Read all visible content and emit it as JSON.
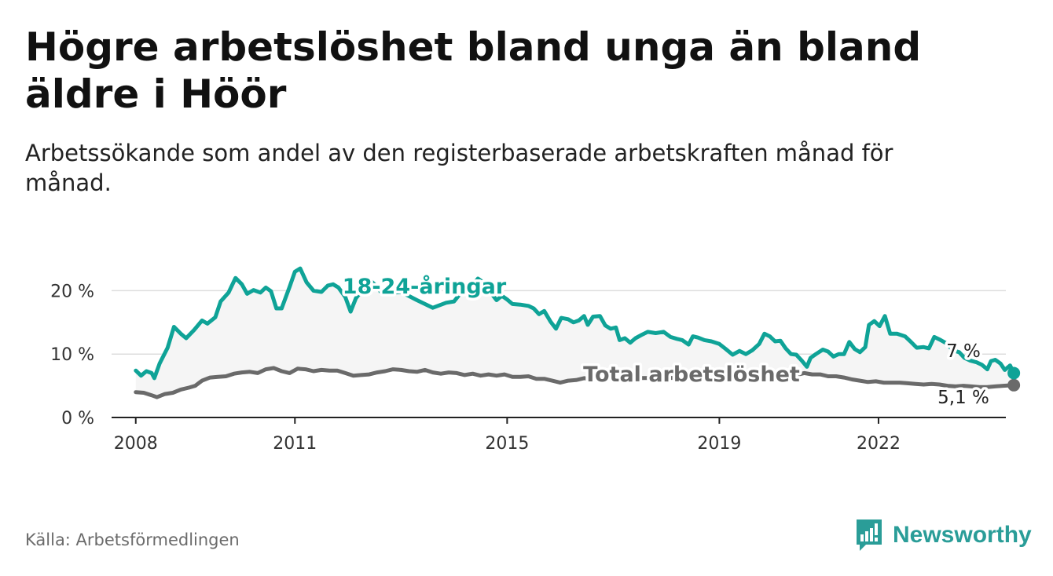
{
  "header": {
    "title": "Högre arbetslöshet bland unga än bland äldre i Höör",
    "subtitle": "Arbetssökande som andel av den registerbaserade arbetskraften månad för månad."
  },
  "footer": {
    "source": "Källa: Arbetsförmedlingen",
    "brand": "Newsworthy"
  },
  "colors": {
    "youth": "#0fa397",
    "total": "#6a6a6a",
    "grid": "#dddddd",
    "band": "#f5f5f5",
    "brand": "#2a9d98"
  },
  "chart_data": {
    "type": "line",
    "title": "Högre arbetslöshet bland unga än bland äldre i Höör",
    "xlabel": "",
    "ylabel": "",
    "xlim": [
      2007.9,
      2024.4
    ],
    "ylim": [
      0,
      25
    ],
    "grid": true,
    "y_ticks": [
      0,
      10,
      20
    ],
    "y_tick_labels": [
      "0 %",
      "10 %",
      "20 %"
    ],
    "x_ticks": [
      2008,
      2011,
      2015,
      2019,
      2022
    ],
    "x_tick_labels": [
      "2008",
      "2011",
      "2015",
      "2019",
      "2022"
    ],
    "series": [
      {
        "name": "18-24-åringar",
        "label": "18-24-åringar",
        "end_label": "7 %",
        "points": [
          [
            2008.0,
            7.4
          ],
          [
            2008.1,
            6.6
          ],
          [
            2008.2,
            7.3
          ],
          [
            2008.3,
            7.0
          ],
          [
            2008.35,
            6.2
          ],
          [
            2008.45,
            8.5
          ],
          [
            2008.6,
            11.0
          ],
          [
            2008.72,
            14.3
          ],
          [
            2008.85,
            13.2
          ],
          [
            2008.95,
            12.5
          ],
          [
            2009.1,
            13.8
          ],
          [
            2009.25,
            15.3
          ],
          [
            2009.35,
            14.8
          ],
          [
            2009.5,
            15.8
          ],
          [
            2009.6,
            18.3
          ],
          [
            2009.75,
            19.7
          ],
          [
            2009.88,
            22.0
          ],
          [
            2010.0,
            21.0
          ],
          [
            2010.1,
            19.5
          ],
          [
            2010.22,
            20.1
          ],
          [
            2010.35,
            19.7
          ],
          [
            2010.45,
            20.5
          ],
          [
            2010.55,
            19.9
          ],
          [
            2010.65,
            17.2
          ],
          [
            2010.75,
            17.2
          ],
          [
            2010.9,
            20.6
          ],
          [
            2011.0,
            23.0
          ],
          [
            2011.1,
            23.5
          ],
          [
            2011.22,
            21.3
          ],
          [
            2011.35,
            20.0
          ],
          [
            2011.5,
            19.8
          ],
          [
            2011.62,
            20.8
          ],
          [
            2011.72,
            21.0
          ],
          [
            2011.82,
            20.5
          ],
          [
            2011.95,
            19.0
          ],
          [
            2012.05,
            16.7
          ],
          [
            2012.15,
            18.8
          ],
          [
            2012.3,
            20.4
          ],
          [
            2012.42,
            21.6
          ],
          [
            2012.5,
            21.0
          ],
          [
            2012.65,
            19.5
          ],
          [
            2013.0,
            19.8
          ],
          [
            2013.3,
            18.5
          ],
          [
            2013.6,
            17.3
          ],
          [
            2013.85,
            18.1
          ],
          [
            2014.0,
            18.3
          ],
          [
            2014.15,
            19.9
          ],
          [
            2014.3,
            20.3
          ],
          [
            2014.45,
            21.9
          ],
          [
            2014.55,
            21.3
          ],
          [
            2014.7,
            19.6
          ],
          [
            2014.8,
            18.5
          ],
          [
            2014.9,
            19.2
          ],
          [
            2015.0,
            18.6
          ],
          [
            2015.1,
            17.9
          ],
          [
            2015.25,
            17.8
          ],
          [
            2015.4,
            17.6
          ],
          [
            2015.5,
            17.2
          ],
          [
            2015.6,
            16.3
          ],
          [
            2015.7,
            16.8
          ],
          [
            2015.82,
            15.1
          ],
          [
            2015.92,
            14.0
          ],
          [
            2016.02,
            15.7
          ],
          [
            2016.15,
            15.5
          ],
          [
            2016.25,
            15.0
          ],
          [
            2016.35,
            15.3
          ],
          [
            2016.45,
            16.0
          ],
          [
            2016.52,
            14.6
          ],
          [
            2016.62,
            15.9
          ],
          [
            2016.75,
            16.0
          ],
          [
            2016.85,
            14.5
          ],
          [
            2016.95,
            14.0
          ],
          [
            2017.05,
            14.2
          ],
          [
            2017.12,
            12.2
          ],
          [
            2017.22,
            12.5
          ],
          [
            2017.32,
            11.8
          ],
          [
            2017.42,
            12.5
          ],
          [
            2017.55,
            13.1
          ],
          [
            2017.65,
            13.5
          ],
          [
            2017.8,
            13.3
          ],
          [
            2017.95,
            13.5
          ],
          [
            2018.08,
            12.7
          ],
          [
            2018.2,
            12.4
          ],
          [
            2018.3,
            12.2
          ],
          [
            2018.42,
            11.5
          ],
          [
            2018.5,
            12.8
          ],
          [
            2018.6,
            12.6
          ],
          [
            2018.72,
            12.2
          ],
          [
            2018.85,
            12.0
          ],
          [
            2019.0,
            11.6
          ],
          [
            2019.12,
            10.8
          ],
          [
            2019.25,
            9.9
          ],
          [
            2019.38,
            10.5
          ],
          [
            2019.5,
            10.0
          ],
          [
            2019.62,
            10.6
          ],
          [
            2019.75,
            11.6
          ],
          [
            2019.85,
            13.2
          ],
          [
            2019.95,
            12.8
          ],
          [
            2020.05,
            12.0
          ],
          [
            2020.15,
            12.1
          ],
          [
            2020.25,
            10.9
          ],
          [
            2020.35,
            10.0
          ],
          [
            2020.45,
            9.9
          ],
          [
            2020.55,
            9.0
          ],
          [
            2020.65,
            8.0
          ],
          [
            2020.72,
            9.4
          ],
          [
            2020.82,
            10.0
          ],
          [
            2020.95,
            10.7
          ],
          [
            2021.05,
            10.4
          ],
          [
            2021.15,
            9.6
          ],
          [
            2021.25,
            10.0
          ],
          [
            2021.35,
            10.0
          ],
          [
            2021.45,
            11.9
          ],
          [
            2021.55,
            10.8
          ],
          [
            2021.65,
            10.3
          ],
          [
            2021.75,
            11.1
          ],
          [
            2021.82,
            14.6
          ],
          [
            2021.92,
            15.2
          ],
          [
            2022.02,
            14.4
          ],
          [
            2022.12,
            16.0
          ],
          [
            2022.22,
            13.2
          ],
          [
            2022.35,
            13.2
          ],
          [
            2022.5,
            12.8
          ],
          [
            2022.6,
            12.0
          ],
          [
            2022.72,
            11.0
          ],
          [
            2022.85,
            11.1
          ],
          [
            2022.95,
            10.9
          ],
          [
            2023.05,
            12.7
          ],
          [
            2023.15,
            12.3
          ],
          [
            2023.28,
            11.7
          ],
          [
            2023.4,
            10.6
          ],
          [
            2023.52,
            10.3
          ],
          [
            2023.62,
            9.4
          ],
          [
            2023.72,
            9.0
          ],
          [
            2023.85,
            8.7
          ],
          [
            2023.95,
            8.3
          ],
          [
            2024.05,
            7.6
          ],
          [
            2024.12,
            8.9
          ],
          [
            2024.2,
            9.1
          ],
          [
            2024.3,
            8.5
          ],
          [
            2024.38,
            7.5
          ],
          [
            2024.48,
            8.2
          ],
          [
            2024.55,
            7.0
          ]
        ]
      },
      {
        "name": "Total arbetslöshet",
        "label": "Total arbetslöshet",
        "end_label": "5,1 %",
        "points": [
          [
            2008.0,
            4.0
          ],
          [
            2008.15,
            3.9
          ],
          [
            2008.3,
            3.5
          ],
          [
            2008.4,
            3.2
          ],
          [
            2008.55,
            3.7
          ],
          [
            2008.7,
            3.9
          ],
          [
            2008.85,
            4.4
          ],
          [
            2009.0,
            4.7
          ],
          [
            2009.12,
            5.0
          ],
          [
            2009.25,
            5.8
          ],
          [
            2009.4,
            6.3
          ],
          [
            2009.55,
            6.4
          ],
          [
            2009.7,
            6.5
          ],
          [
            2009.85,
            6.9
          ],
          [
            2010.0,
            7.1
          ],
          [
            2010.15,
            7.2
          ],
          [
            2010.3,
            7.0
          ],
          [
            2010.45,
            7.6
          ],
          [
            2010.6,
            7.8
          ],
          [
            2010.75,
            7.3
          ],
          [
            2010.9,
            7.0
          ],
          [
            2011.05,
            7.7
          ],
          [
            2011.2,
            7.6
          ],
          [
            2011.35,
            7.3
          ],
          [
            2011.5,
            7.5
          ],
          [
            2011.65,
            7.4
          ],
          [
            2011.8,
            7.4
          ],
          [
            2011.95,
            7.0
          ],
          [
            2012.1,
            6.6
          ],
          [
            2012.25,
            6.7
          ],
          [
            2012.4,
            6.8
          ],
          [
            2012.55,
            7.1
          ],
          [
            2012.7,
            7.3
          ],
          [
            2012.85,
            7.6
          ],
          [
            2013.0,
            7.5
          ],
          [
            2013.15,
            7.3
          ],
          [
            2013.3,
            7.2
          ],
          [
            2013.45,
            7.5
          ],
          [
            2013.6,
            7.1
          ],
          [
            2013.75,
            6.9
          ],
          [
            2013.9,
            7.1
          ],
          [
            2014.05,
            7.0
          ],
          [
            2014.2,
            6.7
          ],
          [
            2014.35,
            6.9
          ],
          [
            2014.5,
            6.6
          ],
          [
            2014.65,
            6.8
          ],
          [
            2014.8,
            6.6
          ],
          [
            2014.95,
            6.8
          ],
          [
            2015.1,
            6.4
          ],
          [
            2015.25,
            6.4
          ],
          [
            2015.4,
            6.5
          ],
          [
            2015.55,
            6.1
          ],
          [
            2015.7,
            6.1
          ],
          [
            2015.85,
            5.8
          ],
          [
            2016.0,
            5.5
          ],
          [
            2016.15,
            5.8
          ],
          [
            2016.3,
            5.9
          ],
          [
            2016.45,
            6.2
          ],
          [
            2016.6,
            6.0
          ],
          [
            2016.75,
            6.2
          ],
          [
            2020.0,
            6.3
          ],
          [
            2020.15,
            6.1
          ],
          [
            2020.3,
            6.3
          ],
          [
            2020.45,
            6.7
          ],
          [
            2020.6,
            7.0
          ],
          [
            2020.75,
            6.8
          ],
          [
            2020.9,
            6.8
          ],
          [
            2021.05,
            6.5
          ],
          [
            2021.2,
            6.5
          ],
          [
            2021.35,
            6.3
          ],
          [
            2021.5,
            6.0
          ],
          [
            2021.65,
            5.8
          ],
          [
            2021.8,
            5.6
          ],
          [
            2021.95,
            5.7
          ],
          [
            2022.1,
            5.5
          ],
          [
            2022.25,
            5.5
          ],
          [
            2022.4,
            5.5
          ],
          [
            2022.55,
            5.4
          ],
          [
            2022.7,
            5.3
          ],
          [
            2022.85,
            5.2
          ],
          [
            2023.0,
            5.3
          ],
          [
            2023.15,
            5.2
          ],
          [
            2023.3,
            5.0
          ],
          [
            2023.45,
            4.9
          ],
          [
            2023.6,
            5.0
          ],
          [
            2023.75,
            4.9
          ],
          [
            2023.9,
            4.8
          ],
          [
            2024.05,
            4.8
          ],
          [
            2024.2,
            4.9
          ],
          [
            2024.35,
            5.0
          ],
          [
            2024.55,
            5.1
          ]
        ]
      }
    ]
  }
}
